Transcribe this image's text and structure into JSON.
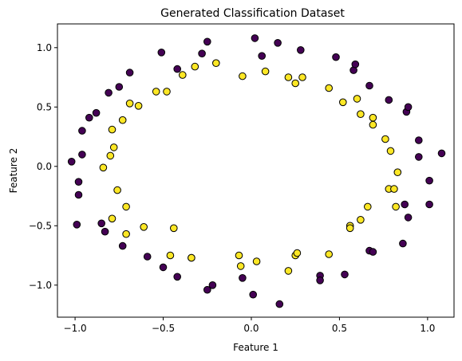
{
  "chart_data": {
    "type": "scatter",
    "title": "Generated Classification Dataset",
    "xlabel": "Feature 1",
    "ylabel": "Feature 2",
    "xlim": [
      -1.1,
      1.15
    ],
    "ylim": [
      -1.27,
      1.2
    ],
    "xticks": [
      -1.0,
      -0.5,
      0.0,
      0.5,
      1.0
    ],
    "xtick_labels": [
      "−1.0",
      "−0.5",
      "0.0",
      "0.5",
      "1.0"
    ],
    "yticks": [
      -1.0,
      -0.5,
      0.0,
      0.5,
      1.0
    ],
    "ytick_labels": [
      "−1.0",
      "−0.5",
      "0.0",
      "0.5",
      "1.0"
    ],
    "grid": false,
    "legend": false,
    "colors": {
      "class_0": "#440154",
      "class_1": "#fde725",
      "edge": "#000000"
    },
    "series": [
      {
        "class": 0,
        "points": [
          [
            -1.02,
            0.04
          ],
          [
            -0.99,
            -0.49
          ],
          [
            -0.98,
            -0.24
          ],
          [
            -0.98,
            -0.13
          ],
          [
            -0.96,
            0.1
          ],
          [
            -0.96,
            0.3
          ],
          [
            -0.92,
            0.41
          ],
          [
            -0.88,
            0.45
          ],
          [
            -0.85,
            -0.48
          ],
          [
            -0.81,
            0.62
          ],
          [
            -0.83,
            -0.55
          ],
          [
            -0.75,
            0.67
          ],
          [
            -0.73,
            -0.67
          ],
          [
            -0.69,
            0.79
          ],
          [
            -0.59,
            -0.76
          ],
          [
            -0.51,
            0.96
          ],
          [
            -0.5,
            -0.85
          ],
          [
            -0.42,
            0.82
          ],
          [
            -0.42,
            -0.93
          ],
          [
            -0.28,
            0.95
          ],
          [
            -0.25,
            1.05
          ],
          [
            -0.25,
            -1.04
          ],
          [
            -0.22,
            -1.0
          ],
          [
            -0.05,
            -0.94
          ],
          [
            0.02,
            1.08
          ],
          [
            0.01,
            -1.08
          ],
          [
            0.06,
            0.93
          ],
          [
            0.15,
            1.04
          ],
          [
            0.16,
            -1.16
          ],
          [
            0.28,
            0.98
          ],
          [
            0.39,
            -0.92
          ],
          [
            0.39,
            -0.96
          ],
          [
            0.48,
            0.92
          ],
          [
            0.53,
            -0.91
          ],
          [
            0.58,
            0.81
          ],
          [
            0.59,
            0.86
          ],
          [
            0.67,
            0.68
          ],
          [
            0.67,
            -0.71
          ],
          [
            0.69,
            -0.72
          ],
          [
            0.78,
            0.56
          ],
          [
            0.86,
            -0.65
          ],
          [
            0.87,
            -0.32
          ],
          [
            0.88,
            0.46
          ],
          [
            0.89,
            0.5
          ],
          [
            0.89,
            -0.43
          ],
          [
            0.95,
            0.22
          ],
          [
            0.95,
            0.08
          ],
          [
            1.01,
            -0.12
          ],
          [
            1.01,
            -0.32
          ],
          [
            1.08,
            0.11
          ]
        ]
      },
      {
        "class": 1,
        "points": [
          [
            -0.84,
            -0.01
          ],
          [
            -0.8,
            0.09
          ],
          [
            -0.79,
            -0.44
          ],
          [
            -0.78,
            0.16
          ],
          [
            -0.79,
            0.31
          ],
          [
            -0.76,
            -0.2
          ],
          [
            -0.73,
            0.39
          ],
          [
            -0.71,
            -0.34
          ],
          [
            -0.71,
            -0.57
          ],
          [
            -0.69,
            0.53
          ],
          [
            -0.64,
            0.51
          ],
          [
            -0.61,
            -0.51
          ],
          [
            -0.54,
            0.63
          ],
          [
            -0.48,
            0.63
          ],
          [
            -0.46,
            -0.75
          ],
          [
            -0.44,
            -0.52
          ],
          [
            -0.39,
            0.77
          ],
          [
            -0.34,
            -0.77
          ],
          [
            -0.34,
            -0.77
          ],
          [
            -0.32,
            0.84
          ],
          [
            -0.2,
            0.87
          ],
          [
            -0.07,
            -0.75
          ],
          [
            -0.06,
            -0.84
          ],
          [
            -0.05,
            0.76
          ],
          [
            0.03,
            -0.8
          ],
          [
            0.08,
            0.8
          ],
          [
            0.21,
            0.75
          ],
          [
            0.21,
            -0.88
          ],
          [
            0.25,
            0.7
          ],
          [
            0.25,
            -0.75
          ],
          [
            0.26,
            -0.73
          ],
          [
            0.29,
            0.75
          ],
          [
            0.44,
            0.66
          ],
          [
            0.44,
            -0.74
          ],
          [
            0.52,
            0.54
          ],
          [
            0.56,
            -0.5
          ],
          [
            0.56,
            -0.52
          ],
          [
            0.6,
            0.57
          ],
          [
            0.62,
            -0.45
          ],
          [
            0.62,
            0.44
          ],
          [
            0.66,
            -0.34
          ],
          [
            0.69,
            0.41
          ],
          [
            0.69,
            0.35
          ],
          [
            0.76,
            0.23
          ],
          [
            0.79,
            0.13
          ],
          [
            0.78,
            -0.19
          ],
          [
            0.81,
            -0.19
          ],
          [
            0.83,
            -0.05
          ],
          [
            0.82,
            -0.34
          ]
        ]
      }
    ]
  }
}
